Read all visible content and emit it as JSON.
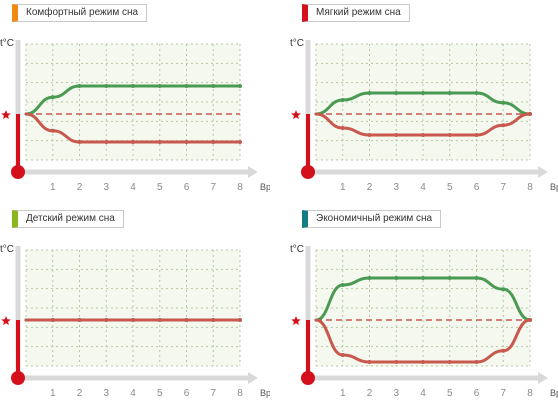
{
  "unit_label": "t°C",
  "x_axis_label": "Время (ч)",
  "x_ticks": [
    "1",
    "2",
    "3",
    "4",
    "5",
    "6",
    "7",
    "8"
  ],
  "colors": {
    "hot": "#c8594e",
    "warm": "#4a9a53",
    "axis_red": "#d4101c",
    "grid": "#b4c9a0",
    "setpoint_star": "#d4101c"
  },
  "panels": [
    {
      "title": "Комфортный режим сна",
      "tab_color": "#f08a12"
    },
    {
      "title": "Мягкий режим сна",
      "tab_color": "#d4101c"
    },
    {
      "title": "Детский режим сна",
      "tab_color": "#8cb61f"
    },
    {
      "title": "Экономичный режим сна",
      "tab_color": "#147d86"
    }
  ],
  "chart_data": [
    {
      "type": "line",
      "title": "Комфортный режим сна",
      "xlabel": "Время (ч)",
      "ylabel": "t°C",
      "x": [
        0,
        1,
        2,
        3,
        4,
        5,
        6,
        7,
        8
      ],
      "series": [
        {
          "values": [
            0,
            1.2,
            2,
            2,
            2,
            2,
            2,
            2,
            2
          ]
        },
        {
          "values": [
            0,
            -1.2,
            -2,
            -2,
            -2,
            -2,
            -2,
            -2,
            -2
          ]
        }
      ]
    },
    {
      "type": "line",
      "title": "Мягкий режим сна",
      "xlabel": "Время (ч)",
      "ylabel": "t°C",
      "x": [
        0,
        1,
        2,
        3,
        4,
        5,
        6,
        7,
        8
      ],
      "series": [
        {
          "values": [
            0,
            1,
            1.5,
            1.5,
            1.5,
            1.5,
            1.5,
            0.8,
            0
          ]
        },
        {
          "values": [
            0,
            -1,
            -1.5,
            -1.5,
            -1.5,
            -1.5,
            -1.5,
            -0.8,
            0
          ]
        }
      ]
    },
    {
      "type": "line",
      "title": "Детский режим сна",
      "xlabel": "Время (ч)",
      "ylabel": "t°C",
      "x": [
        0,
        1,
        2,
        3,
        4,
        5,
        6,
        7,
        8
      ],
      "series": [
        {
          "values": [
            0,
            0,
            0,
            0,
            0,
            0,
            0,
            0,
            0
          ]
        },
        {
          "values": [
            0,
            0,
            0,
            0,
            0,
            0,
            0,
            0,
            0
          ]
        }
      ]
    },
    {
      "type": "line",
      "title": "Экономичный режим сна",
      "xlabel": "Время (ч)",
      "ylabel": "t°C",
      "x": [
        0,
        1,
        2,
        3,
        4,
        5,
        6,
        7,
        8
      ],
      "series": [
        {
          "values": [
            0,
            2.5,
            3,
            3,
            3,
            3,
            3,
            2.2,
            0
          ]
        },
        {
          "values": [
            0,
            -2.5,
            -3,
            -3,
            -3,
            -3,
            -3,
            -2.2,
            0
          ]
        }
      ]
    }
  ]
}
